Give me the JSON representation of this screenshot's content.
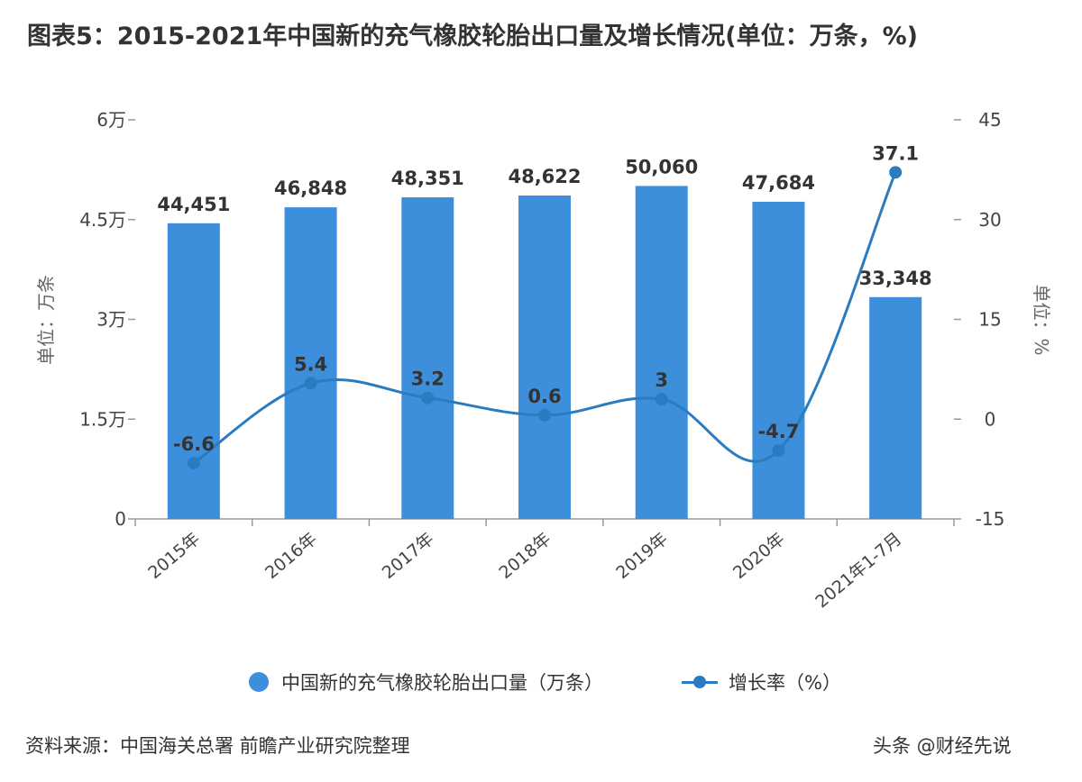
{
  "title": "图表5：2015-2021年中国新的充气橡胶轮胎出口量及增长情况(单位：万条，%)",
  "source": "资料来源：中国海关总署 前瞻产业研究院整理",
  "credit": "头条 @财经先说",
  "colors": {
    "bar": "#3d8fdc",
    "line": "#2a7bc0",
    "axis": "#999999"
  },
  "chart_data": {
    "type": "bar",
    "categories": [
      "2015年",
      "2016年",
      "2017年",
      "2018年",
      "2019年",
      "2020年",
      "2021年1-7月"
    ],
    "series": [
      {
        "name": "中国新的充气橡胶轮胎出口量（万条）",
        "type": "bar",
        "axis": "left",
        "values": [
          44451,
          46848,
          48351,
          48622,
          50060,
          47684,
          33348
        ],
        "labels": [
          "44,451",
          "46,848",
          "48,351",
          "48,622",
          "50,060",
          "47,684",
          "33,348"
        ]
      },
      {
        "name": "增长率（%）",
        "type": "line",
        "axis": "right",
        "values": [
          -6.6,
          5.4,
          3.2,
          0.6,
          3,
          -4.7,
          37.1
        ],
        "labels": [
          "-6.6",
          "5.4",
          "3.2",
          "0.6",
          "3",
          "-4.7",
          "37.1"
        ]
      }
    ],
    "left_axis": {
      "label": "单位：万条",
      "min": 0,
      "max": 60000,
      "ticks": [
        0,
        15000,
        30000,
        45000,
        60000
      ],
      "tick_labels": [
        "0",
        "1.5万",
        "3万",
        "4.5万",
        "6万"
      ]
    },
    "right_axis": {
      "label": "单位：%",
      "min": -15,
      "max": 45,
      "ticks": [
        -15,
        0,
        15,
        30,
        45
      ],
      "tick_labels": [
        "-15",
        "0",
        "15",
        "30",
        "45"
      ]
    },
    "grid": false,
    "legend_position": "bottom"
  }
}
